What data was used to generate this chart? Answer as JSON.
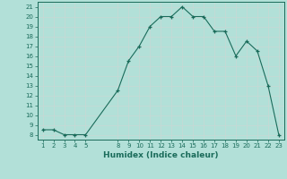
{
  "x": [
    1,
    2,
    3,
    4,
    5,
    8,
    9,
    10,
    11,
    12,
    13,
    14,
    15,
    16,
    17,
    18,
    19,
    20,
    21,
    22,
    23
  ],
  "y": [
    8.5,
    8.5,
    8.0,
    8.0,
    8.0,
    12.5,
    15.5,
    17.0,
    19.0,
    20.0,
    20.0,
    21.0,
    20.0,
    20.0,
    18.5,
    18.5,
    16.0,
    17.5,
    16.5,
    13.0,
    8.0
  ],
  "xlabel": "Humidex (Indice chaleur)",
  "xticks": [
    1,
    2,
    3,
    4,
    5,
    8,
    9,
    10,
    11,
    12,
    13,
    14,
    15,
    16,
    17,
    18,
    19,
    20,
    21,
    22,
    23
  ],
  "yticks": [
    8,
    9,
    10,
    11,
    12,
    13,
    14,
    15,
    16,
    17,
    18,
    19,
    20,
    21
  ],
  "ylim": [
    7.5,
    21.5
  ],
  "xlim": [
    0.5,
    23.5
  ],
  "line_color": "#1a6b5a",
  "bg_color": "#b2e0d8",
  "grid_color": "#c8d8d5"
}
